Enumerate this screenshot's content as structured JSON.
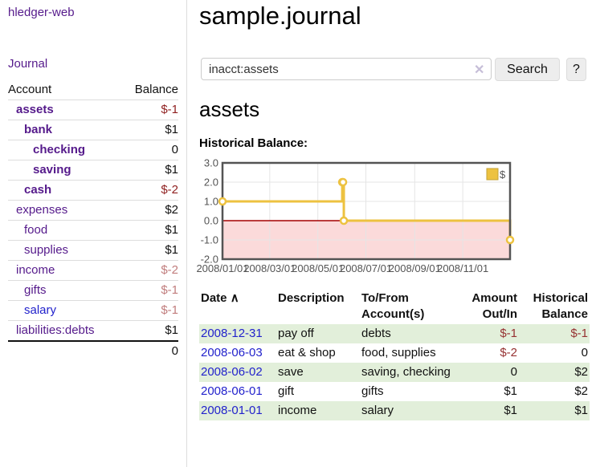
{
  "app": {
    "brand": "hledger-web",
    "nav_journal": "Journal"
  },
  "sidebar": {
    "col_account": "Account",
    "col_balance": "Balance",
    "accounts": [
      {
        "name": "assets",
        "level": 1,
        "bold": true,
        "blue": false,
        "balance": "$-1",
        "bal_class": "neg-dark"
      },
      {
        "name": "bank",
        "level": 2,
        "bold": true,
        "blue": false,
        "balance": "$1",
        "bal_class": "pos"
      },
      {
        "name": "checking",
        "level": 3,
        "bold": true,
        "blue": false,
        "balance": "0",
        "bal_class": "pos"
      },
      {
        "name": "saving",
        "level": 3,
        "bold": true,
        "blue": false,
        "balance": "$1",
        "bal_class": "pos"
      },
      {
        "name": "cash",
        "level": 2,
        "bold": true,
        "blue": false,
        "balance": "$-2",
        "bal_class": "neg-dark"
      },
      {
        "name": "expenses",
        "level": 1,
        "bold": false,
        "blue": false,
        "balance": "$2",
        "bal_class": "pos"
      },
      {
        "name": "food",
        "level": 2,
        "bold": false,
        "blue": false,
        "balance": "$1",
        "bal_class": "pos"
      },
      {
        "name": "supplies",
        "level": 2,
        "bold": false,
        "blue": false,
        "balance": "$1",
        "bal_class": "pos"
      },
      {
        "name": "income",
        "level": 1,
        "bold": false,
        "blue": false,
        "balance": "$-2",
        "bal_class": "neg-light"
      },
      {
        "name": "gifts",
        "level": 2,
        "bold": false,
        "blue": false,
        "balance": "$-1",
        "bal_class": "neg-light"
      },
      {
        "name": "salary",
        "level": 2,
        "bold": false,
        "blue": true,
        "balance": "$-1",
        "bal_class": "neg-light"
      },
      {
        "name": "liabilities:debts",
        "level": 1,
        "bold": false,
        "blue": false,
        "balance": "$1",
        "bal_class": "pos"
      }
    ],
    "total": "0"
  },
  "header": {
    "title": "sample.journal"
  },
  "search": {
    "query": "inacct:assets",
    "clear_icon": "✕",
    "button_label": "Search",
    "help_label": "?"
  },
  "account_page": {
    "heading": "assets",
    "chart_label": "Historical Balance:"
  },
  "chart_data": {
    "type": "line",
    "style": "step",
    "title": "Historical Balance",
    "series": [
      {
        "name": "$",
        "color": "#edc240",
        "points": [
          [
            "2008-01-01",
            1
          ],
          [
            "2008-06-01",
            2
          ],
          [
            "2008-06-02",
            2
          ],
          [
            "2008-06-03",
            0
          ],
          [
            "2008-12-31",
            -1
          ]
        ]
      }
    ],
    "x_range": [
      "2008-01-01",
      "2008-12-31"
    ],
    "ylim": [
      -2,
      3
    ],
    "y_ticks": [
      {
        "v": 3,
        "label": "3.0"
      },
      {
        "v": 2,
        "label": "2.0"
      },
      {
        "v": 1,
        "label": "1.0"
      },
      {
        "v": 0,
        "label": "0.0"
      },
      {
        "v": -1,
        "label": "-1.0"
      },
      {
        "v": -2,
        "label": "-2.0"
      }
    ],
    "x_ticks": [
      {
        "date": "2008-01-01",
        "label": "2008/01/01"
      },
      {
        "date": "2008-03-01",
        "label": "2008/03/01"
      },
      {
        "date": "2008-05-01",
        "label": "2008/05/01"
      },
      {
        "date": "2008-07-01",
        "label": "2008/07/01"
      },
      {
        "date": "2008-09-01",
        "label": "2008/09/01"
      },
      {
        "date": "2008-11-01",
        "label": "2008/11/01"
      }
    ],
    "legend": {
      "label": "$",
      "position": "top-right"
    },
    "negative_region": {
      "from": 0,
      "to": -2,
      "fill": "#fbdada",
      "line_color": "#a40000"
    },
    "grid": true,
    "colors": {
      "border": "#545454",
      "gridline": "#e5e5e5",
      "tick_text": "#545454"
    }
  },
  "register": {
    "columns": {
      "date": "Date",
      "date_sort_icon": "∧",
      "description": "Description",
      "tofrom_line1": "To/From",
      "tofrom_line2": "Account(s)",
      "amount_line1": "Amount",
      "amount_line2": "Out/In",
      "hist_line1": "Historical",
      "hist_line2": "Balance"
    },
    "rows": [
      {
        "date": "2008-12-31",
        "description": "pay off",
        "accounts": "debts",
        "amount": "$-1",
        "amount_neg": true,
        "balance": "$-1",
        "balance_neg": true,
        "stripe": true
      },
      {
        "date": "2008-06-03",
        "description": "eat & shop",
        "accounts": "food, supplies",
        "amount": "$-2",
        "amount_neg": true,
        "balance": "0",
        "balance_neg": false,
        "stripe": false
      },
      {
        "date": "2008-06-02",
        "description": "save",
        "accounts": "saving, checking",
        "amount": "0",
        "amount_neg": false,
        "balance": "$2",
        "balance_neg": false,
        "stripe": true
      },
      {
        "date": "2008-06-01",
        "description": "gift",
        "accounts": "gifts",
        "amount": "$1",
        "amount_neg": false,
        "balance": "$2",
        "balance_neg": false,
        "stripe": false
      },
      {
        "date": "2008-01-01",
        "description": "income",
        "accounts": "salary",
        "amount": "$1",
        "amount_neg": false,
        "balance": "$1",
        "balance_neg": false,
        "stripe": true
      }
    ]
  },
  "colors": {
    "link_visited_purple": "#551a8b",
    "link_blue": "#2222cc",
    "negative_dark": "#8f1f1f",
    "negative_light": "#c17d7d",
    "negative_table": "#963232",
    "row_stripe_green": "#e2efda",
    "chart_line_gold": "#edc240"
  }
}
